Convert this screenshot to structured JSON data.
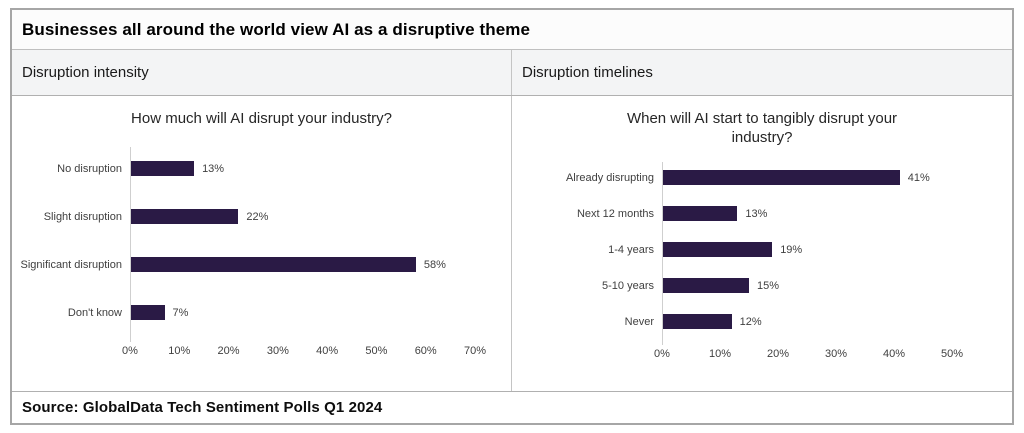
{
  "header": {
    "title": "Businesses all around the world view AI as a disruptive theme"
  },
  "panels": [
    {
      "label": "Disruption intensity"
    },
    {
      "label": "Disruption timelines"
    }
  ],
  "footer": {
    "source": "Source: GlobalData Tech Sentiment Polls Q1 2024"
  },
  "colors": {
    "bar": "#2a1a45",
    "axis_line": "#cfcfcf",
    "header_band_bg": "#f3f4f5"
  },
  "chart_data": [
    {
      "type": "bar",
      "orientation": "horizontal",
      "title": "How much will AI disrupt your industry?",
      "categories": [
        "No disruption",
        "Slight disruption",
        "Significant disruption",
        "Don't know"
      ],
      "values": [
        13,
        22,
        58,
        7
      ],
      "value_labels": [
        "13%",
        "22%",
        "58%",
        "7%"
      ],
      "xlim": [
        0,
        70
      ],
      "x_tick_values": [
        0,
        10,
        20,
        30,
        40,
        50,
        60,
        70
      ],
      "x_tick_labels": [
        "0%",
        "10%",
        "20%",
        "30%",
        "40%",
        "50%",
        "60%",
        "70%"
      ],
      "grid": false,
      "legend": false
    },
    {
      "type": "bar",
      "orientation": "horizontal",
      "title": "When will AI start to tangibly disrupt your industry?",
      "categories": [
        "Already disrupting",
        "Next 12 months",
        "1-4 years",
        "5-10 years",
        "Never"
      ],
      "values": [
        41,
        13,
        19,
        15,
        12
      ],
      "value_labels": [
        "41%",
        "13%",
        "19%",
        "15%",
        "12%"
      ],
      "xlim": [
        0,
        50
      ],
      "x_tick_values": [
        0,
        10,
        20,
        30,
        40,
        50
      ],
      "x_tick_labels": [
        "0%",
        "10%",
        "20%",
        "30%",
        "40%",
        "50%"
      ],
      "grid": false,
      "legend": false
    }
  ]
}
